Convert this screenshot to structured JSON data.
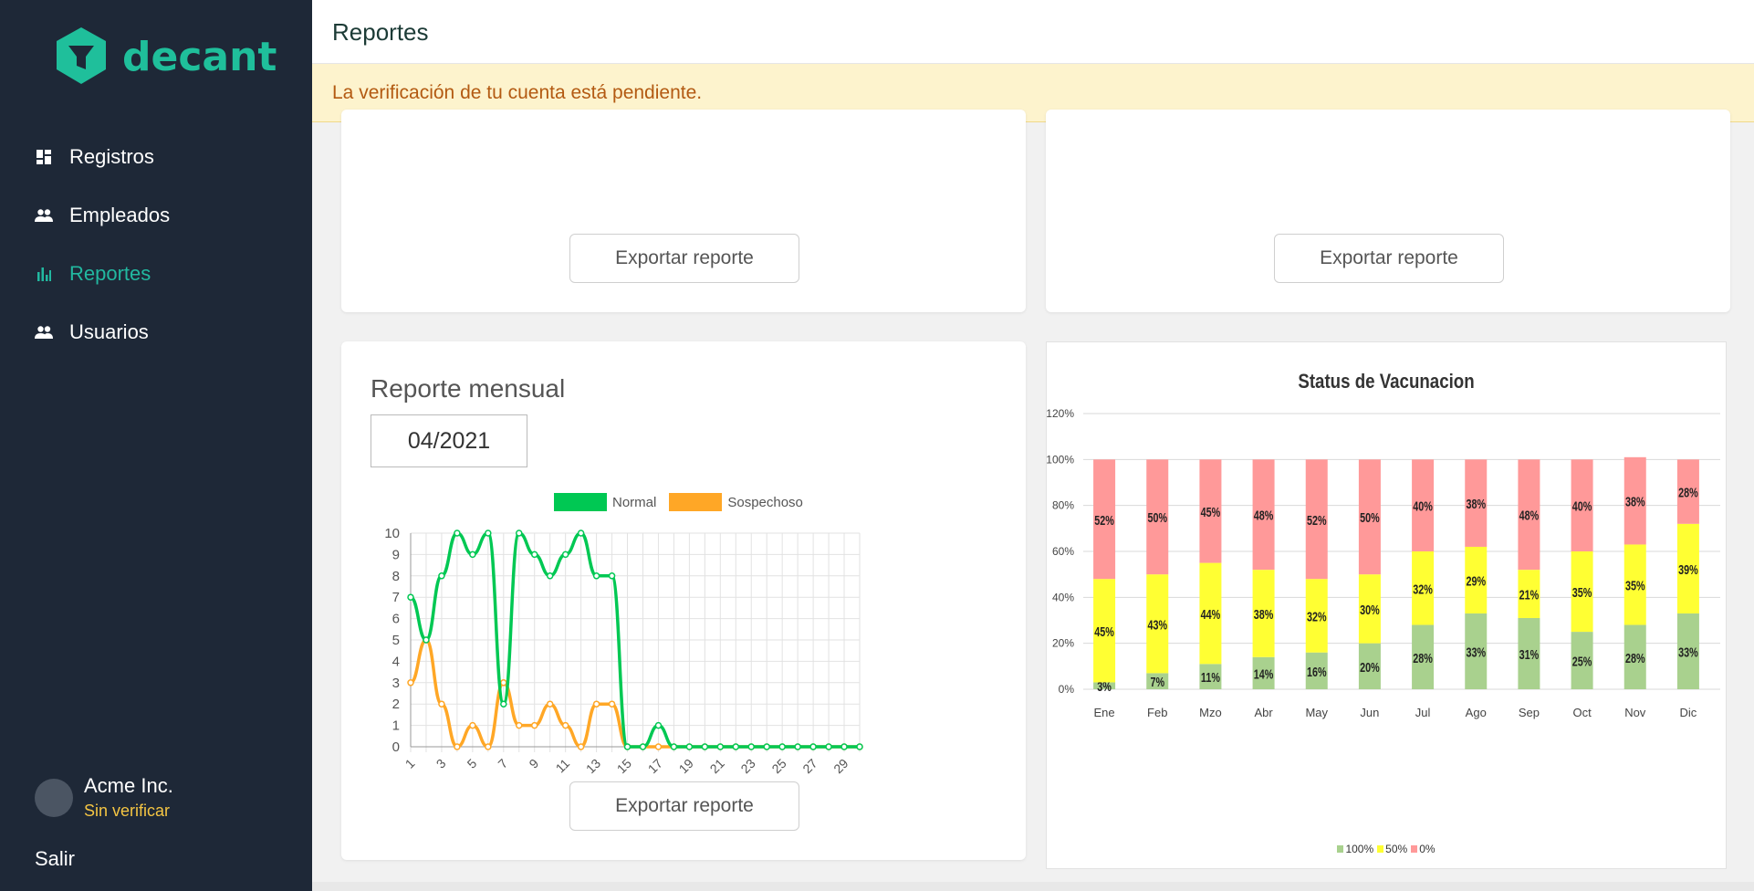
{
  "app": {
    "brand": "decant",
    "brand_color": "#1fbf9b"
  },
  "sidebar": {
    "items": [
      {
        "label": "Registros",
        "icon": "dashboard-icon",
        "active": false
      },
      {
        "label": "Empleados",
        "icon": "people-icon",
        "active": false
      },
      {
        "label": "Reportes",
        "icon": "bar-chart-icon",
        "active": true
      },
      {
        "label": "Usuarios",
        "icon": "people-icon",
        "active": false
      }
    ],
    "account": {
      "name": "Acme Inc.",
      "status": "Sin verificar"
    },
    "logout": "Salir"
  },
  "header": {
    "title": "Reportes"
  },
  "alert": {
    "text": "La verificación de tu cuenta está pendiente."
  },
  "cards": {
    "export_label": "Exportar reporte",
    "monthly": {
      "title": "Reporte mensual",
      "month_value": "04/2021"
    }
  },
  "chart_data": [
    {
      "type": "line",
      "legend": [
        "Normal",
        "Sospechoso"
      ],
      "legend_position": "top",
      "colors": {
        "Normal": "#00c853",
        "Sospechoso": "#ffa726"
      },
      "x": [
        1,
        2,
        3,
        4,
        5,
        6,
        7,
        8,
        9,
        10,
        11,
        12,
        13,
        14,
        15,
        16,
        17,
        18,
        19,
        20,
        21,
        22,
        23,
        24,
        25,
        26,
        27,
        28,
        29,
        30
      ],
      "x_tick_labels": [
        "1",
        "3",
        "5",
        "7",
        "9",
        "11",
        "13",
        "15",
        "17",
        "19",
        "21",
        "23",
        "25",
        "27",
        "29"
      ],
      "ylim": [
        0,
        10
      ],
      "y_ticks": [
        0,
        1,
        2,
        3,
        4,
        5,
        6,
        7,
        8,
        9,
        10
      ],
      "grid": true,
      "series": [
        {
          "name": "Normal",
          "values": [
            7,
            5,
            8,
            10,
            9,
            10,
            2,
            10,
            9,
            8,
            9,
            10,
            8,
            8,
            0,
            0,
            1,
            0,
            0,
            0,
            0,
            0,
            0,
            0,
            0,
            0,
            0,
            0,
            0,
            0
          ]
        },
        {
          "name": "Sospechoso",
          "values": [
            3,
            5,
            2,
            0,
            1,
            0,
            3,
            1,
            1,
            2,
            1,
            0,
            2,
            2,
            0,
            0,
            0,
            0,
            0,
            0,
            0,
            0,
            0,
            0,
            0,
            0,
            0,
            0,
            0,
            0
          ]
        }
      ]
    },
    {
      "type": "bar",
      "stacked": true,
      "title": "Status de Vacunacion",
      "categories": [
        "Ene",
        "Feb",
        "Mzo",
        "Abr",
        "May",
        "Jun",
        "Jul",
        "Ago",
        "Sep",
        "Oct",
        "Nov",
        "Dic"
      ],
      "y_ticks": [
        "0%",
        "20%",
        "40%",
        "60%",
        "80%",
        "100%",
        "120%"
      ],
      "ylim": [
        0,
        120
      ],
      "legend": [
        "100%",
        "50%",
        "0%"
      ],
      "legend_position": "bottom",
      "colors": {
        "100%": "#a9d18e",
        "50%": "#ffff33",
        "0%": "#ff9999"
      },
      "series": [
        {
          "name": "100%",
          "values": [
            3,
            7,
            11,
            14,
            16,
            20,
            28,
            33,
            31,
            25,
            28,
            33
          ]
        },
        {
          "name": "50%",
          "values": [
            45,
            43,
            44,
            38,
            32,
            30,
            32,
            29,
            21,
            35,
            35,
            39
          ]
        },
        {
          "name": "0%",
          "values": [
            52,
            50,
            45,
            48,
            52,
            50,
            40,
            38,
            48,
            40,
            38,
            28
          ]
        }
      ]
    }
  ]
}
